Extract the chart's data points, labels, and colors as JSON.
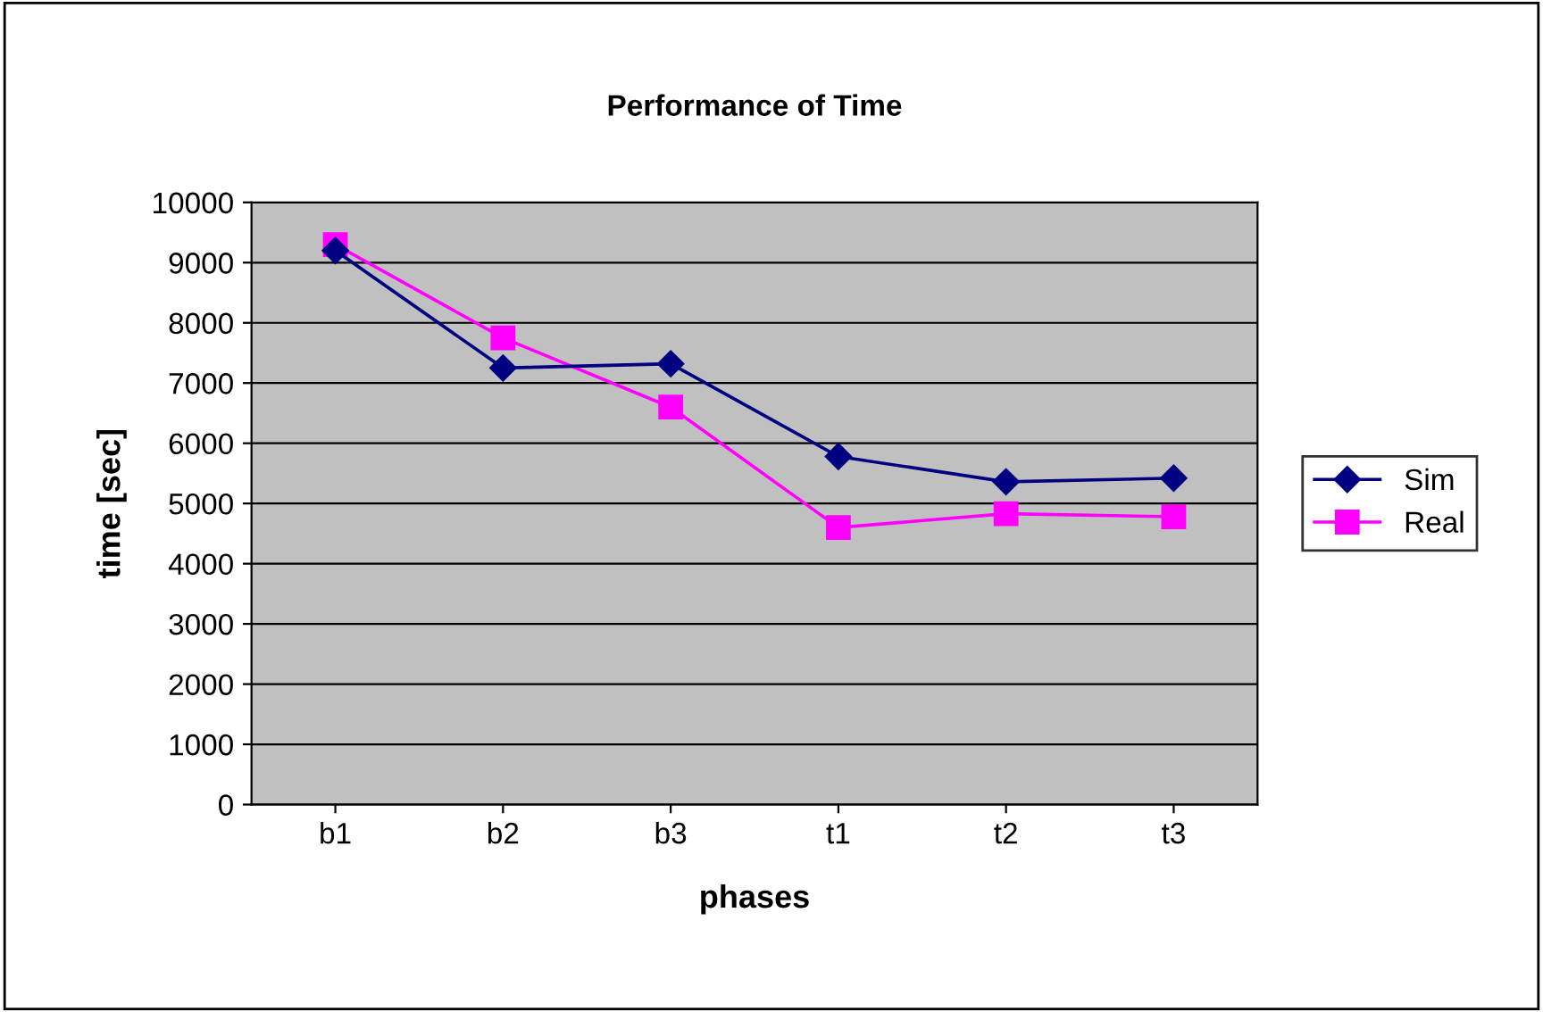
{
  "chart_data": {
    "type": "line",
    "title": "Performance of Time",
    "xlabel": "phases",
    "ylabel": "time [sec]",
    "categories": [
      "b1",
      "b2",
      "b3",
      "t1",
      "t2",
      "t3"
    ],
    "series": [
      {
        "name": "Sim",
        "color": "#000080",
        "marker": "diamond",
        "values": [
          9200,
          7250,
          7320,
          5780,
          5360,
          5420
        ]
      },
      {
        "name": "Real",
        "color": "#ff00ff",
        "marker": "square",
        "values": [
          9300,
          7750,
          6600,
          4600,
          4830,
          4780
        ]
      }
    ],
    "ylim": [
      0,
      10000
    ],
    "yticks": [
      0,
      1000,
      2000,
      3000,
      4000,
      5000,
      6000,
      7000,
      8000,
      9000,
      10000
    ],
    "grid": "y",
    "legend": "right",
    "line_style": "solid"
  }
}
